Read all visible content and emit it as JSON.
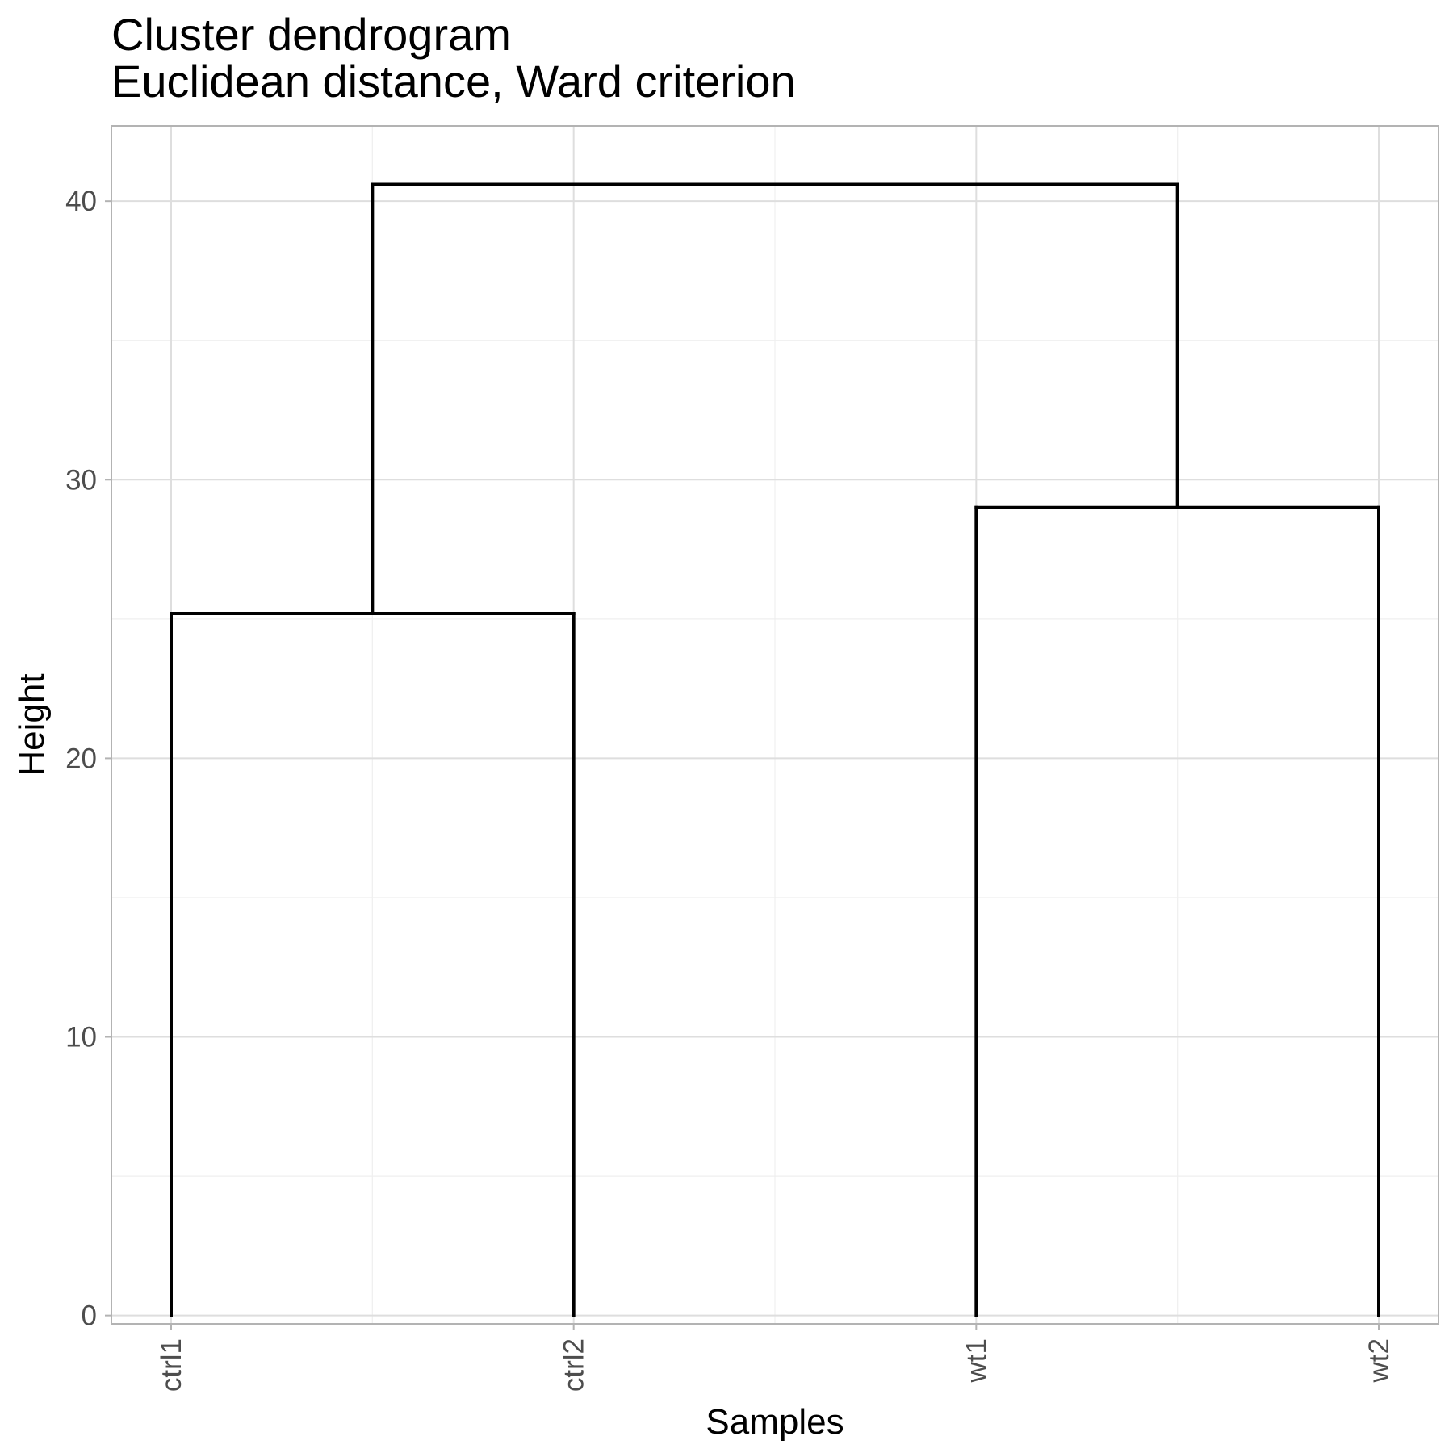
{
  "chart_data": {
    "type": "dendrogram",
    "title": "Cluster dendrogram",
    "subtitle": "Euclidean distance, Ward criterion",
    "xlabel": "Samples",
    "ylabel": "Height",
    "leaves": [
      "ctrl1",
      "ctrl2",
      "wt1",
      "wt2"
    ],
    "ylim": [
      -0.3,
      42.7
    ],
    "yticks": [
      0,
      10,
      20,
      30,
      40
    ],
    "y_minor_ticks": [
      5,
      15,
      25,
      35
    ],
    "merges": [
      {
        "left": "ctrl1",
        "right": "ctrl2",
        "height": 25.2
      },
      {
        "left": "wt1",
        "right": "wt2",
        "height": 29.0
      },
      {
        "left": "ctrl1+ctrl2",
        "right": "wt1+wt2",
        "height": 40.6
      }
    ],
    "grid": true,
    "colors": {
      "line": "#000000",
      "grid_major": "#dedede",
      "grid_minor": "#efefef",
      "panel_border": "#b3b3b3",
      "tick_text": "#4d4d4d"
    }
  }
}
